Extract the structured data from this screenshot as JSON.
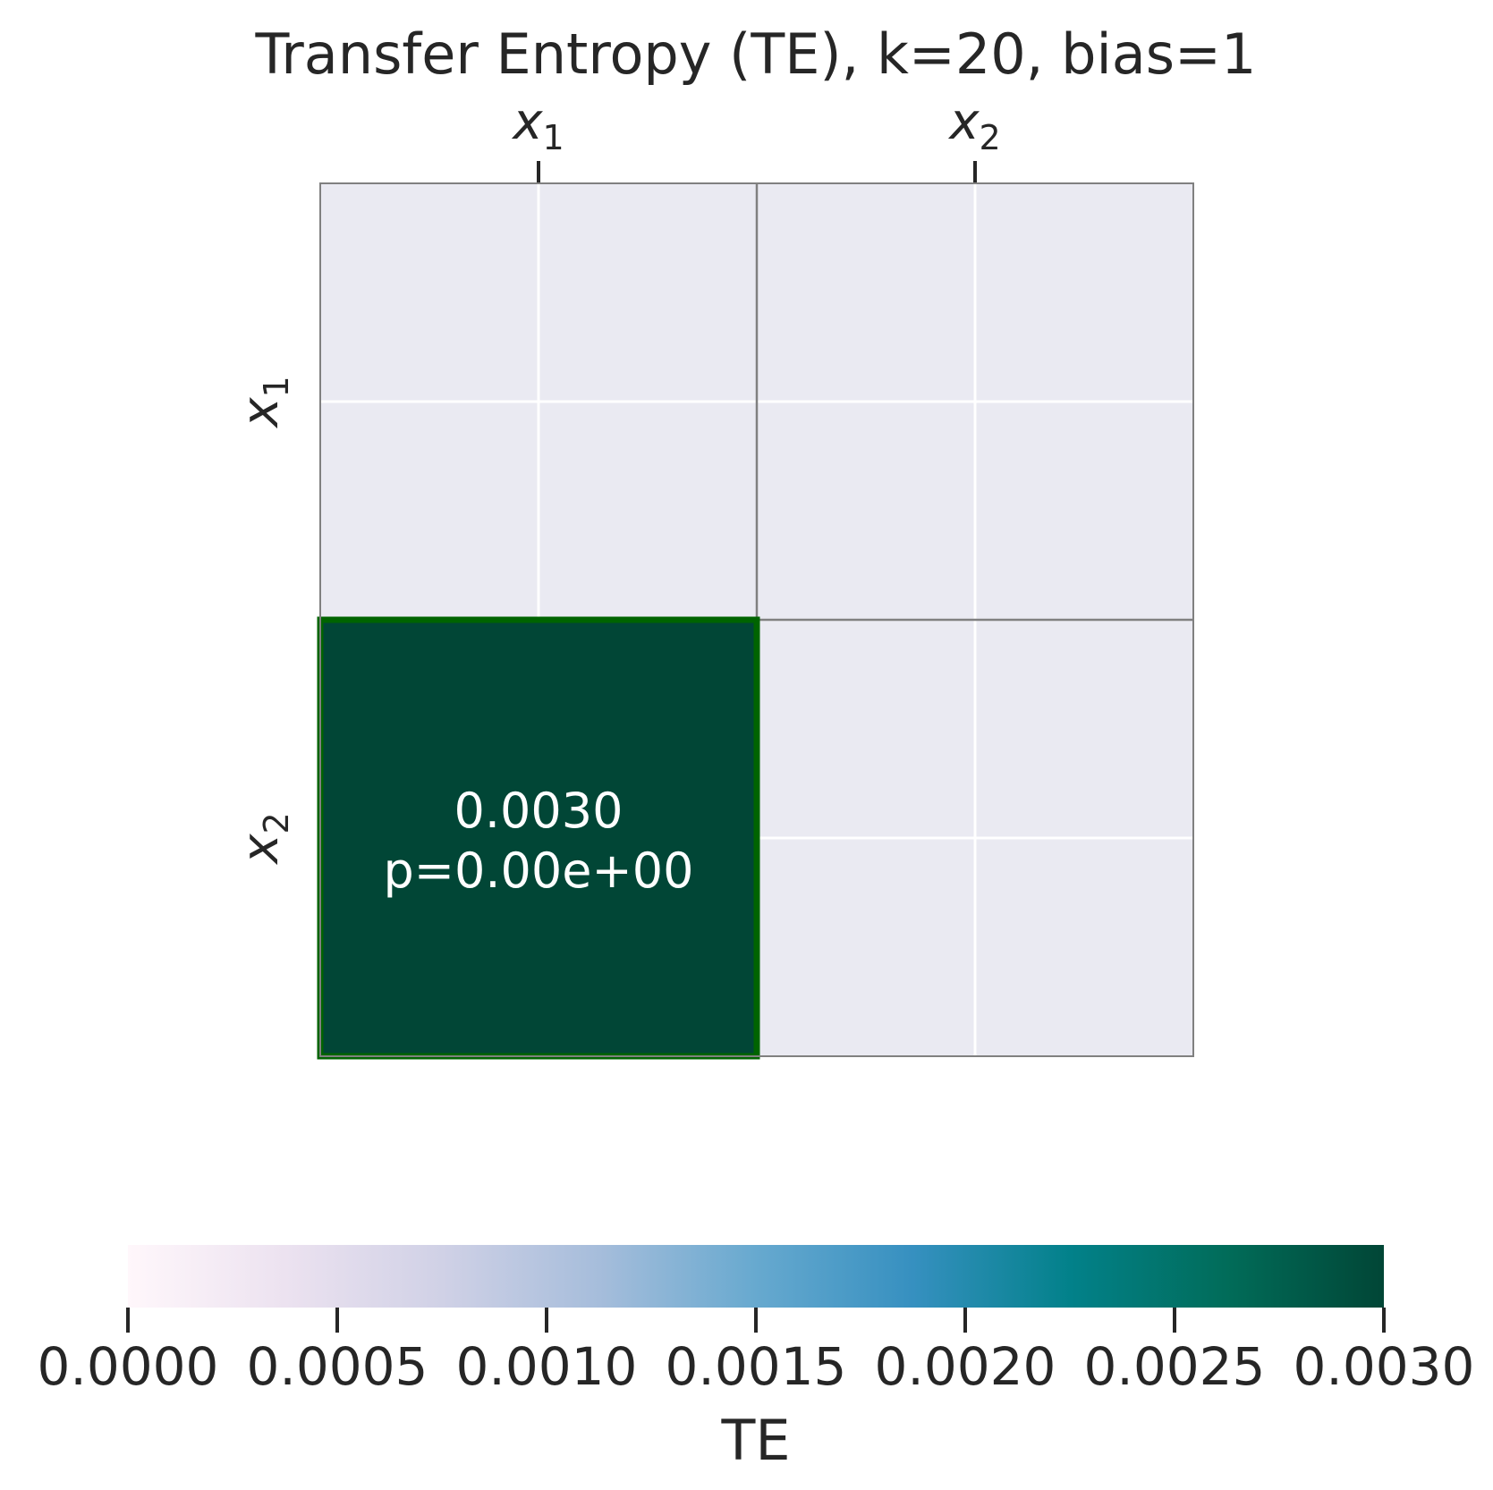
{
  "chart_data": {
    "type": "heatmap",
    "title": "Transfer Entropy (TE), k=20, bias=1",
    "xlabel": "",
    "ylabel": "",
    "x_categories": [
      {
        "base": "x",
        "sub": "1"
      },
      {
        "base": "x",
        "sub": "2"
      }
    ],
    "y_categories": [
      {
        "base": "x",
        "sub": "1"
      },
      {
        "base": "x",
        "sub": "2"
      }
    ],
    "cells": [
      {
        "row": 1,
        "col": 0,
        "value": 0.003,
        "value_label": "0.0030",
        "p_label": "p=0.00e+00",
        "significant": true
      }
    ],
    "empty_cell_color": "#eaeaf2",
    "significant_border_color": "#006400",
    "grid": true,
    "colorbar": {
      "label": "TE",
      "placement": "bottom",
      "colormap": "PuBuGn",
      "colors": [
        "#fff7fb",
        "#ece2f0",
        "#d0d1e6",
        "#a6bddb",
        "#67a9cf",
        "#3690c0",
        "#02818a",
        "#016c59",
        "#014636"
      ],
      "range": [
        0.0,
        0.003
      ],
      "ticks": [
        0.0,
        0.0005,
        0.001,
        0.0015,
        0.002,
        0.0025,
        0.003
      ],
      "tick_labels": [
        "0.0000",
        "0.0005",
        "0.0010",
        "0.0015",
        "0.0020",
        "0.0025",
        "0.0030"
      ]
    }
  }
}
